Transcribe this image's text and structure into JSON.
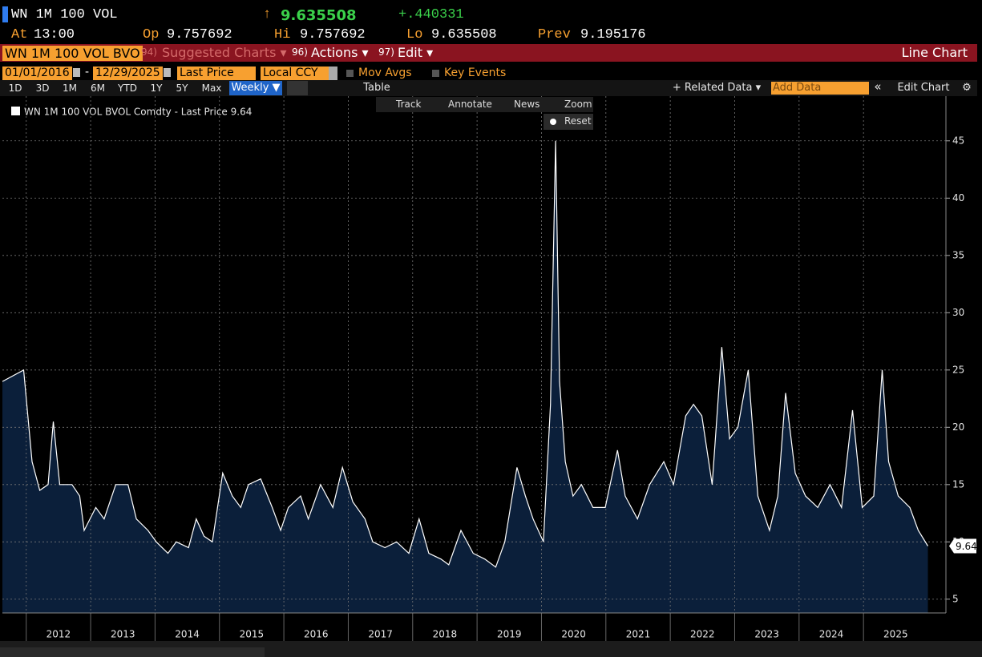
{
  "header": {
    "ticker": "WN 1M 100 VOL",
    "arrow": "↑",
    "last": "9.635508",
    "change": "+.440331",
    "fields": [
      {
        "label": "At",
        "value": "13:00"
      },
      {
        "label": "Op",
        "value": "9.757692"
      },
      {
        "label": "Hi",
        "value": "9.757692"
      },
      {
        "label": "Lo",
        "value": "9.635508"
      },
      {
        "label": "Prev",
        "value": "9.195176"
      }
    ]
  },
  "menu": {
    "security": "WN 1M 100 VOL BVO",
    "items": [
      {
        "num": "94)",
        "label": "Suggested Charts ▾"
      },
      {
        "num": "96)",
        "label": "Actions ▾"
      },
      {
        "num": "97)",
        "label": "Edit ▾"
      }
    ],
    "chart_type": "Line Chart"
  },
  "controls": {
    "start_date": "01/01/2016",
    "date_separator": "-",
    "end_date": "12/29/2025",
    "field": "Last Price",
    "currency": "Local CCY",
    "checkboxes": [
      "Mov Avgs",
      "Key Events"
    ],
    "periods": [
      "1D",
      "3D",
      "1M",
      "6M",
      "YTD",
      "1Y",
      "5Y",
      "Max"
    ],
    "frequency": "Weekly ▼",
    "table": "Table",
    "related": "+ Related Data ▾",
    "add_data": "Add Data",
    "collapse": "«",
    "edit_chart": "Edit Chart",
    "tools": [
      "Track",
      "Annotate",
      "News",
      "Zoom"
    ],
    "reset": "Reset"
  },
  "chart_data": {
    "type": "line",
    "legend": "WN 1M 100 VOL BVOL Comdty - Last Price 9.64",
    "last_price_label": "9.64",
    "color": "#ffffff",
    "fill": "#0b1f3a",
    "grid": true,
    "x": [
      2011.63,
      2011.96,
      2012.09,
      2012.21,
      2012.34,
      2012.42,
      2012.52,
      2012.71,
      2012.83,
      2012.9,
      2013.08,
      2013.21,
      2013.39,
      2013.58,
      2013.71,
      2013.89,
      2014.02,
      2014.2,
      2014.33,
      2014.52,
      2014.64,
      2014.76,
      2014.89,
      2015.05,
      2015.2,
      2015.33,
      2015.45,
      2015.64,
      2015.82,
      2015.95,
      2016.07,
      2016.26,
      2016.38,
      2016.57,
      2016.76,
      2016.91,
      2017.07,
      2017.26,
      2017.38,
      2017.57,
      2017.75,
      2017.94,
      2018.1,
      2018.25,
      2018.44,
      2018.56,
      2018.75,
      2018.94,
      2019.12,
      2019.29,
      2019.43,
      2019.62,
      2019.75,
      2019.87,
      2020.03,
      2020.14,
      2020.22,
      2020.28,
      2020.37,
      2020.49,
      2020.62,
      2020.8,
      2020.99,
      2021.18,
      2021.3,
      2021.49,
      2021.68,
      2021.9,
      2022.05,
      2022.24,
      2022.36,
      2022.49,
      2022.65,
      2022.8,
      2022.92,
      2023.05,
      2023.21,
      2023.36,
      2023.54,
      2023.67,
      2023.79,
      2023.94,
      2024.1,
      2024.29,
      2024.48,
      2024.66,
      2024.83,
      2024.98,
      2025.16,
      2025.29,
      2025.39,
      2025.54,
      2025.72,
      2025.85,
      2026.0
    ],
    "values": [
      24,
      25,
      17,
      14.5,
      15,
      20.5,
      15,
      15,
      14,
      11,
      13,
      12,
      15,
      15,
      12,
      11,
      10,
      9,
      10,
      9.5,
      12,
      10.5,
      10,
      16,
      14,
      13,
      15,
      15.5,
      13,
      11,
      13,
      14,
      12,
      15,
      13,
      16.5,
      13.5,
      12,
      10,
      9.5,
      10,
      9,
      12,
      9,
      8.5,
      8,
      11,
      9,
      8.5,
      7.8,
      10,
      16.5,
      14,
      12,
      10,
      22,
      45,
      24,
      17,
      14,
      15,
      13,
      13,
      18,
      14,
      12,
      15,
      17,
      15,
      21,
      22,
      21,
      15,
      27,
      19,
      20,
      25,
      14,
      11,
      14,
      23,
      16,
      14,
      13,
      15,
      13,
      21.5,
      13,
      14,
      25,
      17,
      14,
      13,
      11,
      9.64
    ],
    "xlim": [
      2011.63,
      2026.28
    ],
    "xticks": [
      {
        "value": 2012,
        "label": "2012"
      },
      {
        "value": 2013,
        "label": "2013"
      },
      {
        "value": 2014,
        "label": "2014"
      },
      {
        "value": 2015,
        "label": "2015"
      },
      {
        "value": 2016,
        "label": "2016"
      },
      {
        "value": 2017,
        "label": "2017"
      },
      {
        "value": 2018,
        "label": "2018"
      },
      {
        "value": 2019,
        "label": "2019"
      },
      {
        "value": 2020,
        "label": "2020"
      },
      {
        "value": 2021,
        "label": "2021"
      },
      {
        "value": 2022,
        "label": "2022"
      },
      {
        "value": 2023,
        "label": "2023"
      },
      {
        "value": 2024,
        "label": "2024"
      },
      {
        "value": 2025,
        "label": "2025"
      }
    ],
    "ylim": [
      3.8,
      48.9
    ],
    "yticks": [
      5,
      10,
      15,
      20,
      25,
      30,
      35,
      40,
      45
    ]
  }
}
